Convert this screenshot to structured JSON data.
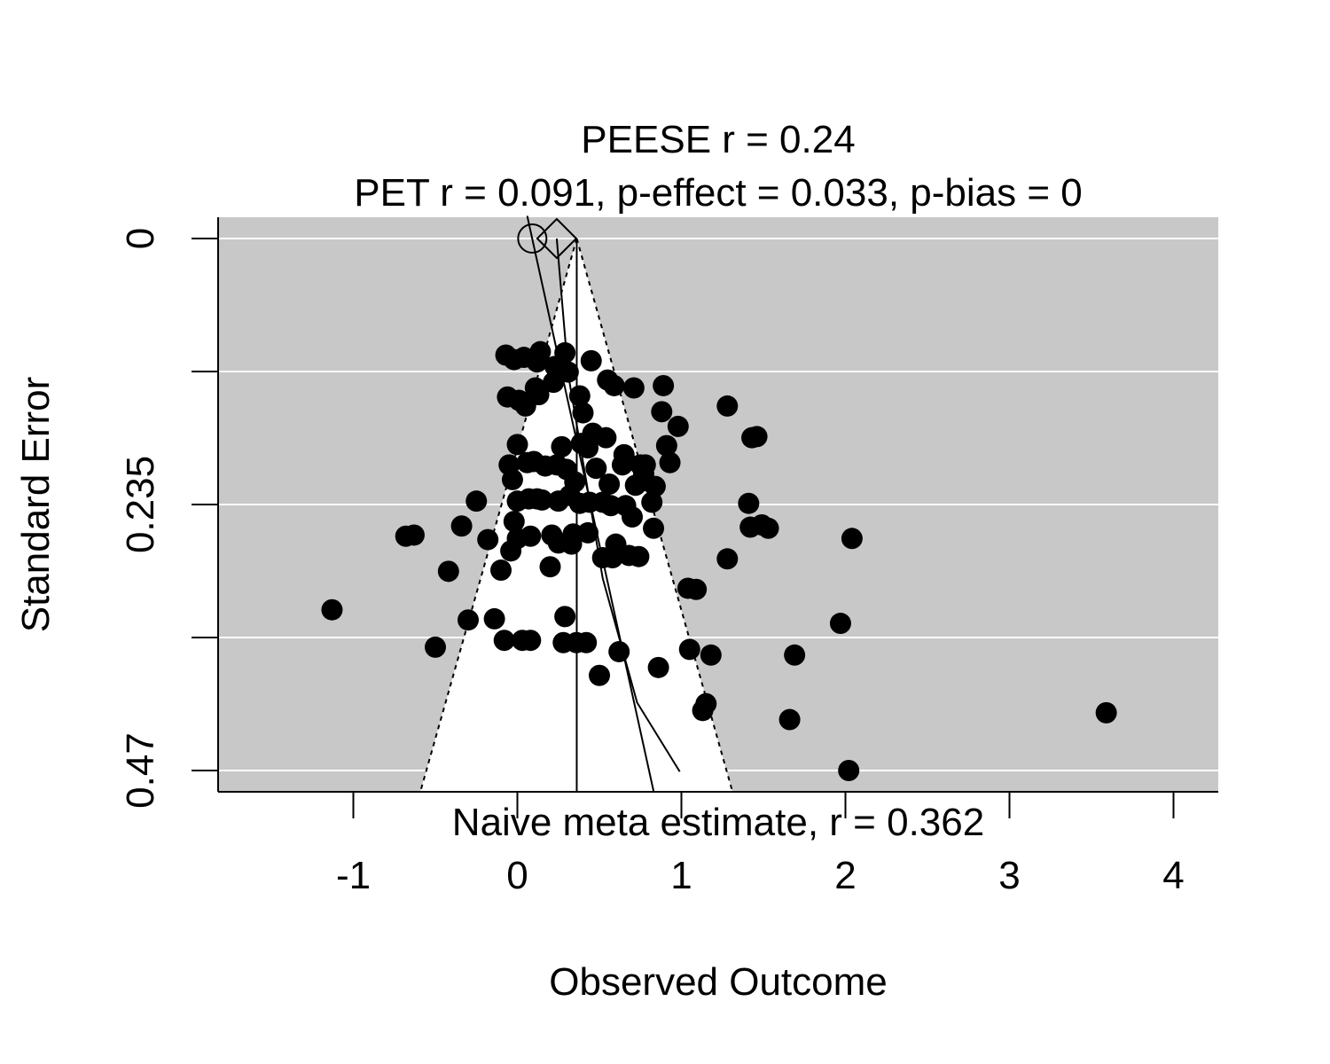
{
  "chart_data": {
    "type": "scatter",
    "subtype": "funnel-plot",
    "title_lines": [
      "PEESE r = 0.24",
      "PET r = 0.091, p-effect = 0.033, p-bias = 0"
    ],
    "xlabel": "Observed Outcome",
    "ylabel": "Standard Error",
    "annotation": "Naive meta estimate, r = 0.362",
    "xlim": [
      -1.83,
      4.28
    ],
    "ylim": [
      0.47,
      0
    ],
    "y_reversed": true,
    "x_ticks": [
      "-1",
      "0",
      "1",
      "2",
      "3",
      "4"
    ],
    "y_ticks": [
      "0",
      "0.235",
      "0.47"
    ],
    "grid": "horizontal white lines at 0, 0.1175, 0.235, 0.3525, 0.47",
    "background_outside_funnel": "#c8c8c8",
    "funnel_center": 0.362,
    "funnel_bottom_left": -0.59,
    "funnel_bottom_right": 1.31,
    "funnel_bottom_se": 0.488,
    "naive_estimate_line_x": 0.362,
    "pet_estimate": 0.091,
    "peese_estimate": 0.24,
    "pet_line": [
      [
        0.06,
        -0.02
      ],
      [
        0.83,
        0.488
      ]
    ],
    "peese_curve": [
      [
        0.24,
        0.0
      ],
      [
        0.31,
        0.12
      ],
      [
        0.52,
        0.3
      ],
      [
        0.73,
        0.41
      ],
      [
        0.99,
        0.471
      ]
    ],
    "x": [
      -1.13,
      -0.68,
      -0.63,
      -0.5,
      -0.42,
      -0.34,
      -0.3,
      -0.25,
      -0.18,
      -0.14,
      -0.1,
      -0.08,
      -0.07,
      -0.06,
      -0.05,
      -0.04,
      -0.03,
      -0.02,
      -0.02,
      0.0,
      0.0,
      0.0,
      0.01,
      0.03,
      0.04,
      0.05,
      0.06,
      0.07,
      0.08,
      0.08,
      0.1,
      0.11,
      0.12,
      0.12,
      0.13,
      0.14,
      0.15,
      0.17,
      0.2,
      0.21,
      0.22,
      0.23,
      0.24,
      0.25,
      0.25,
      0.27,
      0.28,
      0.29,
      0.29,
      0.3,
      0.31,
      0.32,
      0.33,
      0.34,
      0.35,
      0.36,
      0.38,
      0.38,
      0.39,
      0.4,
      0.42,
      0.43,
      0.43,
      0.44,
      0.45,
      0.46,
      0.48,
      0.5,
      0.52,
      0.52,
      0.54,
      0.55,
      0.56,
      0.57,
      0.58,
      0.59,
      0.6,
      0.62,
      0.64,
      0.65,
      0.66,
      0.68,
      0.7,
      0.71,
      0.72,
      0.74,
      0.75,
      0.77,
      0.77,
      0.78,
      0.82,
      0.83,
      0.84,
      0.86,
      0.88,
      0.89,
      0.91,
      0.93,
      0.98,
      1.04,
      1.05,
      1.09,
      1.13,
      1.18,
      1.15,
      1.28,
      1.28,
      1.41,
      1.42,
      1.43,
      1.46,
      1.49,
      1.53,
      1.66,
      1.69,
      1.97,
      2.02,
      2.04,
      3.59
    ],
    "y": [
      0.328,
      0.263,
      0.262,
      0.361,
      0.294,
      0.254,
      0.337,
      0.232,
      0.266,
      0.336,
      0.293,
      0.355,
      0.103,
      0.14,
      0.2,
      0.276,
      0.213,
      0.25,
      0.107,
      0.182,
      0.232,
      0.265,
      0.143,
      0.355,
      0.105,
      0.148,
      0.198,
      0.23,
      0.355,
      0.263,
      0.197,
      0.132,
      0.23,
      0.109,
      0.138,
      0.1,
      0.231,
      0.201,
      0.29,
      0.262,
      0.127,
      0.113,
      0.2,
      0.232,
      0.269,
      0.184,
      0.357,
      0.334,
      0.101,
      0.204,
      0.118,
      0.227,
      0.27,
      0.261,
      0.215,
      0.357,
      0.139,
      0.234,
      0.181,
      0.154,
      0.357,
      0.26,
      0.185,
      0.233,
      0.108,
      0.172,
      0.203,
      0.386,
      0.233,
      0.282,
      0.176,
      0.125,
      0.217,
      0.236,
      0.282,
      0.13,
      0.27,
      0.365,
      0.2,
      0.191,
      0.236,
      0.28,
      0.246,
      0.132,
      0.218,
      0.281,
      0.2,
      0.214,
      0.208,
      0.2,
      0.233,
      0.256,
      0.219,
      0.379,
      0.153,
      0.13,
      0.183,
      0.198,
      0.166,
      0.309,
      0.363,
      0.31,
      0.417,
      0.368,
      0.411,
      0.148,
      0.283,
      0.234,
      0.255,
      0.176,
      0.175,
      0.253,
      0.256,
      0.425,
      0.368,
      0.34,
      0.47,
      0.265,
      0.419
    ]
  }
}
